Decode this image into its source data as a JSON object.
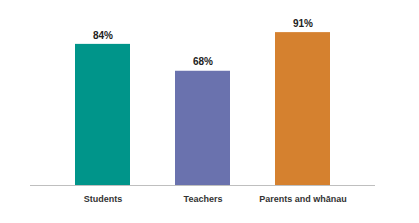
{
  "chart_data": {
    "type": "bar",
    "categories": [
      "Students",
      "Teachers",
      "Parents and whānau"
    ],
    "values": [
      84,
      68,
      91
    ],
    "value_labels": [
      "84%",
      "68%",
      "91%"
    ],
    "colors": [
      "#00958a",
      "#6a72ae",
      "#d5812f"
    ],
    "ylim": [
      0,
      100
    ],
    "data_labels": true,
    "tick_labels": "x",
    "grid": false
  }
}
